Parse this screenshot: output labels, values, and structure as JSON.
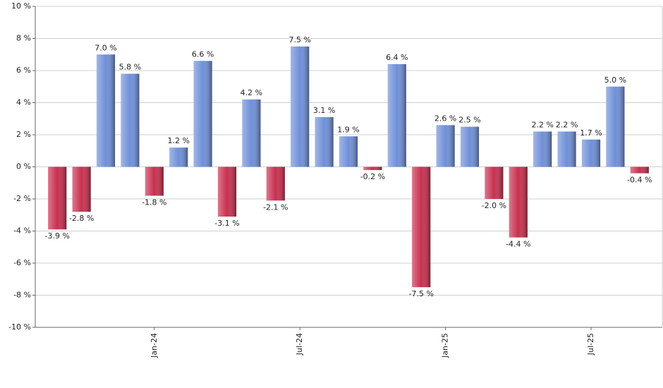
{
  "chart_data": {
    "type": "bar",
    "categories": [
      null,
      null,
      null,
      null,
      "Jan-24",
      null,
      null,
      null,
      null,
      null,
      "Jul-24",
      null,
      null,
      null,
      null,
      null,
      "Jan-25",
      null,
      null,
      null,
      null,
      null,
      "Jul-25",
      null,
      null
    ],
    "values": [
      -3.9,
      -2.8,
      7.0,
      5.8,
      -1.8,
      1.2,
      6.6,
      -3.1,
      4.2,
      -2.1,
      7.5,
      3.1,
      1.9,
      -0.2,
      6.4,
      -7.5,
      2.6,
      2.5,
      -2.0,
      -4.4,
      2.2,
      2.2,
      1.7,
      5.0,
      -0.4
    ],
    "value_labels": [
      "-3.9 %",
      "-2.8 %",
      "7.0 %",
      "5.8 %",
      "-1.8 %",
      "1.2 %",
      "6.6 %",
      "-3.1 %",
      "4.2 %",
      "-2.1 %",
      "7.5 %",
      "3.1 %",
      "1.9 %",
      "-0.2 %",
      "6.4 %",
      "-7.5 %",
      "2.6 %",
      "2.5 %",
      "-2.0 %",
      "-4.4 %",
      "2.2 %",
      "2.2 %",
      "1.7 %",
      "5.0 %",
      "-0.4 %"
    ],
    "positive_color": "#6f8fd8",
    "negative_color": "#c8304f",
    "ylim": [
      -10,
      10
    ],
    "yticks": [
      {
        "value": -10,
        "label": "-10 %"
      },
      {
        "value": -8,
        "label": "-8 %"
      },
      {
        "value": -6,
        "label": "-6 %"
      },
      {
        "value": -4,
        "label": "-4 %"
      },
      {
        "value": -2,
        "label": "-2 %"
      },
      {
        "value": 0,
        "label": "0 %"
      },
      {
        "value": 2,
        "label": "2 %"
      },
      {
        "value": 4,
        "label": "4 %"
      },
      {
        "value": 6,
        "label": "6 %"
      },
      {
        "value": 8,
        "label": "8 %"
      },
      {
        "value": 10,
        "label": "10 %"
      }
    ],
    "grid": true
  }
}
